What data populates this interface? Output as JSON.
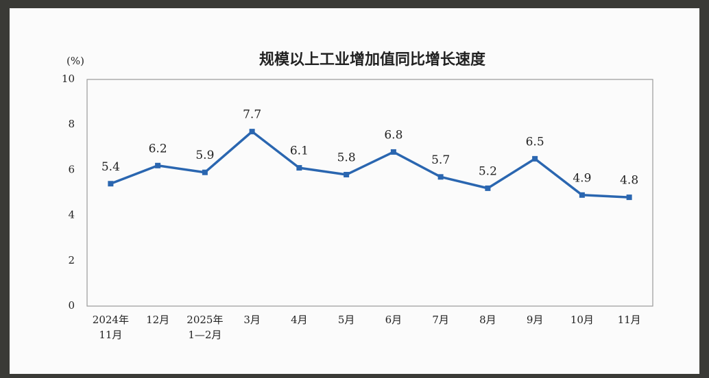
{
  "chart_data": {
    "type": "line",
    "title": "规模以上工业增加值同比增长速度",
    "y_label": "(%)",
    "categories": [
      [
        "2024年",
        "11月"
      ],
      [
        "12月"
      ],
      [
        "2025年",
        "1—2月"
      ],
      [
        "3月"
      ],
      [
        "4月"
      ],
      [
        "5月"
      ],
      [
        "6月"
      ],
      [
        "7月"
      ],
      [
        "8月"
      ],
      [
        "9月"
      ],
      [
        "10月"
      ],
      [
        "11月"
      ]
    ],
    "values": [
      5.4,
      6.2,
      5.9,
      7.7,
      6.1,
      5.8,
      6.8,
      5.7,
      5.2,
      6.5,
      4.9,
      4.8
    ],
    "color": "#2a66b0",
    "ylim": [
      0,
      10
    ],
    "yticks": [
      0,
      2,
      4,
      6,
      8,
      10
    ],
    "grid": false
  }
}
